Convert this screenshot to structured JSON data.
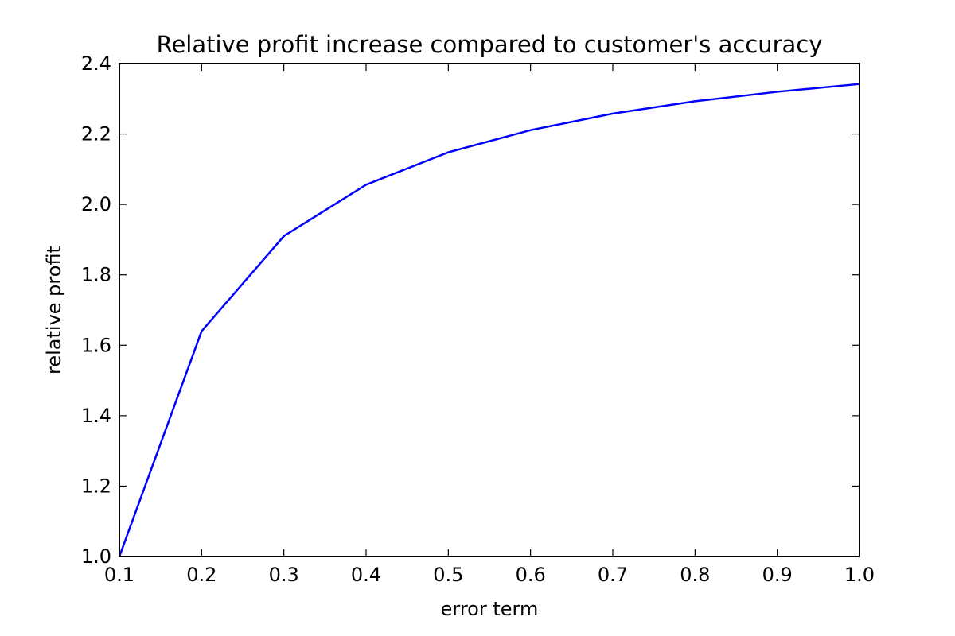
{
  "chart_data": {
    "type": "line",
    "title": "Relative profit increase compared to customer's accuracy",
    "xlabel": "error term",
    "ylabel": "relative profit",
    "xlim": [
      0.1,
      1.0
    ],
    "ylim": [
      1.0,
      2.4
    ],
    "xticks": [
      0.1,
      0.2,
      0.3,
      0.4,
      0.5,
      0.6,
      0.7,
      0.8,
      0.9,
      1.0
    ],
    "xtick_labels": [
      "0.1",
      "0.2",
      "0.3",
      "0.4",
      "0.5",
      "0.6",
      "0.7",
      "0.8",
      "0.9",
      "1.0"
    ],
    "yticks": [
      1.0,
      1.2,
      1.4,
      1.6,
      1.8,
      2.0,
      2.2,
      2.4
    ],
    "ytick_labels": [
      "1.0",
      "1.2",
      "1.4",
      "1.6",
      "1.8",
      "2.0",
      "2.2",
      "2.4"
    ],
    "grid": false,
    "series": [
      {
        "color": "#0000ff",
        "x": [
          0.1,
          0.2,
          0.3,
          0.4,
          0.5,
          0.6,
          0.7,
          0.8,
          0.9,
          1.0
        ],
        "y": [
          1.0,
          1.64,
          1.91,
          2.056,
          2.148,
          2.211,
          2.258,
          2.293,
          2.32,
          2.342
        ]
      }
    ]
  }
}
